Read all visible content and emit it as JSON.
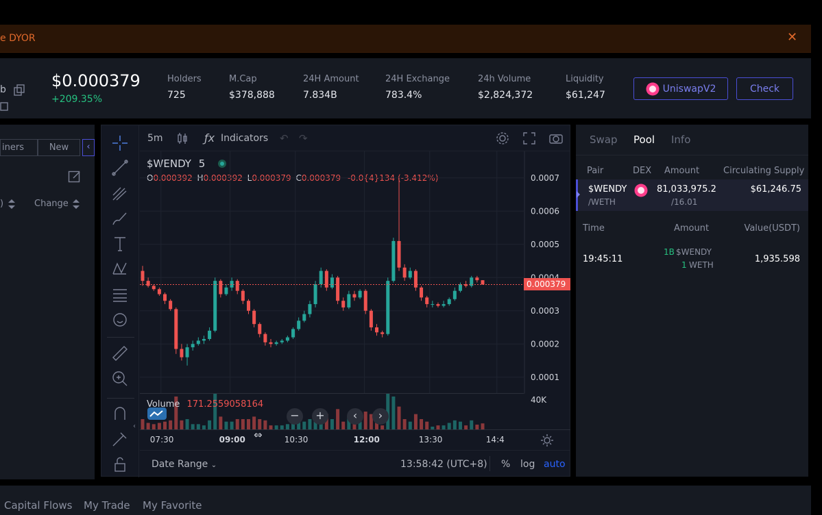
{
  "banner": {
    "text": "e DYOR",
    "close": "✕"
  },
  "stats": {
    "addr_suffix": "b",
    "price": "$0.000379",
    "change": "+209.35%",
    "items": [
      {
        "label": "Holders",
        "value": "725"
      },
      {
        "label": "M.Cap",
        "value": "$378,888"
      },
      {
        "label": "24H Amount",
        "value": "7.834B"
      },
      {
        "label": "24H Exchange",
        "value": "783.4%"
      },
      {
        "label": "24h Volume",
        "value": "$2,824,372"
      },
      {
        "label": "Liquidity",
        "value": "$61,247"
      }
    ],
    "dex_button": "UniswapV2",
    "check_button": "Check"
  },
  "left_panel": {
    "tabs": [
      "iners",
      "New"
    ],
    "col1": ")",
    "col2": "Change"
  },
  "chart": {
    "interval": "5m",
    "indicators_label": "Indicators",
    "symbol": "$WENDY",
    "symbol_interval": "5",
    "ohlc": {
      "o": "0.000392",
      "h": "0.000392",
      "l": "0.000379",
      "c": "0.000379",
      "chg": "-0.0{4}134 (-3.412%)"
    },
    "current_price": "0.000379",
    "volume_label": "Volume",
    "volume_value": "171.2559058164",
    "volume_axis": "40K",
    "date_range": "Date Range",
    "time": "13:58:42 (UTC+8)",
    "pct": "%",
    "log": "log",
    "auto": "auto"
  },
  "chart_data": {
    "type": "candlestick",
    "y_ticks": [
      "0.0007",
      "0.0006",
      "0.0005",
      "0.0004",
      "0.0003",
      "0.0002",
      "0.0001"
    ],
    "x_ticks": [
      "07:30",
      "09:00",
      "10:30",
      "12:00",
      "13:30",
      "14:4"
    ],
    "ylim": [
      5e-05,
      0.00078
    ],
    "candles": [
      [
        0.00042,
        0.000435,
        0.000375,
        0.00039
      ],
      [
        0.00039,
        0.0004,
        0.00037,
        0.000375
      ],
      [
        0.000375,
        0.00038,
        0.00036,
        0.000365
      ],
      [
        0.000365,
        0.00037,
        0.000345,
        0.00035
      ],
      [
        0.00035,
        0.000355,
        0.00032,
        0.00033
      ],
      [
        0.00033,
        0.000335,
        0.0003,
        0.000305
      ],
      [
        0.000305,
        0.00031,
        0.00017,
        0.000185
      ],
      [
        0.000185,
        0.0002,
        0.00015,
        0.00016
      ],
      [
        0.00016,
        0.0002,
        0.000135,
        0.00019
      ],
      [
        0.00019,
        0.00021,
        0.00018,
        0.0002
      ],
      [
        0.0002,
        0.00022,
        0.000195,
        0.00021
      ],
      [
        0.00021,
        0.000225,
        0.0002,
        0.000215
      ],
      [
        0.000215,
        0.00025,
        0.00021,
        0.00024
      ],
      [
        0.00024,
        0.0004,
        0.000235,
        0.00039
      ],
      [
        0.00039,
        0.000395,
        0.00034,
        0.00035
      ],
      [
        0.00035,
        0.00038,
        0.000345,
        0.00037
      ],
      [
        0.00037,
        0.0004,
        0.00036,
        0.00039
      ],
      [
        0.00039,
        0.000395,
        0.00035,
        0.00036
      ],
      [
        0.00036,
        0.000365,
        0.00032,
        0.00033
      ],
      [
        0.00033,
        0.000335,
        0.00029,
        0.0003
      ],
      [
        0.0003,
        0.000305,
        0.00025,
        0.00026
      ],
      [
        0.00026,
        0.000265,
        0.00022,
        0.00023
      ],
      [
        0.00023,
        0.000235,
        0.000195,
        0.000205
      ],
      [
        0.000205,
        0.000215,
        0.00019,
        0.0002
      ],
      [
        0.0002,
        0.00021,
        0.000195,
        0.000205
      ],
      [
        0.000205,
        0.000215,
        0.0002,
        0.00021
      ],
      [
        0.00021,
        0.000225,
        0.000205,
        0.00022
      ],
      [
        0.00022,
        0.00025,
        0.000215,
        0.000245
      ],
      [
        0.000245,
        0.00028,
        0.00024,
        0.00027
      ],
      [
        0.00027,
        0.0003,
        0.000265,
        0.00029
      ],
      [
        0.00029,
        0.00033,
        0.00028,
        0.00032
      ],
      [
        0.00032,
        0.00039,
        0.00031,
        0.00038
      ],
      [
        0.00038,
        0.00043,
        0.00037,
        0.00042
      ],
      [
        0.00042,
        0.000425,
        0.00036,
        0.00037
      ],
      [
        0.00037,
        0.00041,
        0.000365,
        0.0004
      ],
      [
        0.0004,
        0.000405,
        0.00032,
        0.00033
      ],
      [
        0.00033,
        0.00034,
        0.0003,
        0.00031
      ],
      [
        0.00031,
        0.00036,
        0.000305,
        0.00035
      ],
      [
        0.00035,
        0.00036,
        0.00033,
        0.00034
      ],
      [
        0.00034,
        0.000365,
        0.000335,
        0.00036
      ],
      [
        0.00036,
        0.000365,
        0.00029,
        0.0003
      ],
      [
        0.0003,
        0.000305,
        0.00024,
        0.00025
      ],
      [
        0.00025,
        0.00026,
        0.000225,
        0.000235
      ],
      [
        0.000235,
        0.00024,
        0.00022,
        0.00023
      ],
      [
        0.00023,
        0.0004,
        0.000225,
        0.00039
      ],
      [
        0.00039,
        0.00052,
        0.000385,
        0.00051
      ],
      [
        0.00051,
        0.0007,
        0.00042,
        0.00043
      ],
      [
        0.00043,
        0.00044,
        0.00039,
        0.0004
      ],
      [
        0.0004,
        0.00043,
        0.000395,
        0.00042
      ],
      [
        0.00042,
        0.000425,
        0.00036,
        0.00037
      ],
      [
        0.00037,
        0.000375,
        0.00033,
        0.00034
      ],
      [
        0.00034,
        0.000345,
        0.00031,
        0.00032
      ],
      [
        0.00032,
        0.00033,
        0.00031,
        0.00032
      ],
      [
        0.00032,
        0.000325,
        0.00031,
        0.000315
      ],
      [
        0.000315,
        0.00033,
        0.00031,
        0.00032
      ],
      [
        0.00032,
        0.00034,
        0.000315,
        0.000335
      ],
      [
        0.000335,
        0.00037,
        0.00033,
        0.00036
      ],
      [
        0.00036,
        0.000385,
        0.000355,
        0.00038
      ],
      [
        0.00038,
        0.00039,
        0.00037,
        0.000375
      ],
      [
        0.000375,
        0.000405,
        0.00037,
        0.0004
      ],
      [
        0.0004,
        0.000405,
        0.000385,
        0.000392
      ],
      [
        0.000392,
        0.000392,
        0.000379,
        0.000379
      ]
    ]
  },
  "right_panel": {
    "tabs": [
      "Swap",
      "Pool",
      "Info"
    ],
    "pair_headers": [
      "Pair",
      "DEX",
      "Amount",
      "Circulating Supply"
    ],
    "pair": {
      "name": "$WENDY",
      "quote": "/WETH",
      "amount1": "81,033,975.2",
      "amount2": "/16.01",
      "supply": "$61,246.75"
    },
    "tx_headers": [
      "Time",
      "Amount",
      "Value(USDT)"
    ],
    "tx": {
      "time": "19:45:11",
      "a1": "1B",
      "s1": "$WENDY",
      "a2": "1",
      "s2": "WETH",
      "value": "1,935.598"
    }
  },
  "bottom_tabs": [
    "Capital Flows",
    "My Trade",
    "My Favorite"
  ],
  "colors": {
    "up": "#26a69a",
    "down": "#ef5350",
    "accent": "#4b4fd6"
  }
}
